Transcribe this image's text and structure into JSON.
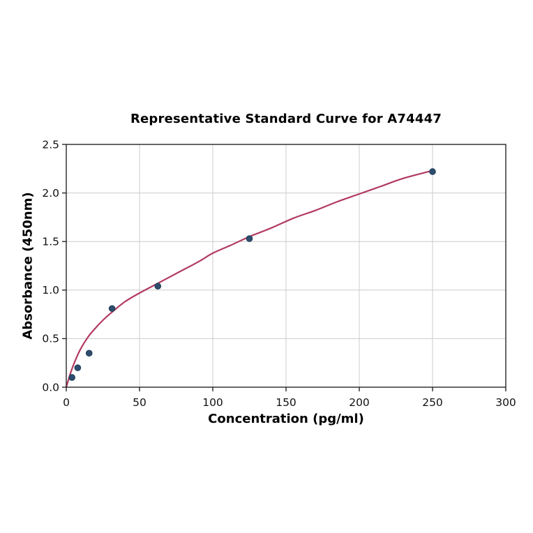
{
  "page": {
    "background": "#ffffff"
  },
  "chart_data": {
    "type": "scatter",
    "title": "Representative Standard Curve for A74447",
    "xlabel": "Concentration (pg/ml)",
    "ylabel": "Absorbance (450nm)",
    "xlim": [
      0,
      300
    ],
    "ylim": [
      0,
      2.5
    ],
    "grid": true,
    "legend": "none",
    "x_ticks": [
      0,
      50,
      100,
      150,
      200,
      250,
      300
    ],
    "x_tick_labels": [
      "0",
      "50",
      "100",
      "150",
      "200",
      "250",
      "300"
    ],
    "y_ticks": [
      0,
      0.5,
      1.0,
      1.5,
      2.0,
      2.5
    ],
    "y_tick_labels": [
      "0.0",
      "0.5",
      "1.0",
      "1.5",
      "2.0",
      "2.5"
    ],
    "series": [
      {
        "name": "standard-points",
        "type": "scatter",
        "points": [
          {
            "x": 3.9,
            "y": 0.1
          },
          {
            "x": 7.8,
            "y": 0.2
          },
          {
            "x": 15.6,
            "y": 0.35
          },
          {
            "x": 31.25,
            "y": 0.81
          },
          {
            "x": 62.5,
            "y": 1.04
          },
          {
            "x": 125,
            "y": 1.53
          },
          {
            "x": 250,
            "y": 2.22
          }
        ]
      },
      {
        "name": "fitted-curve",
        "type": "line",
        "points": [
          [
            0,
            0.0
          ],
          [
            3,
            0.15
          ],
          [
            6,
            0.27
          ],
          [
            10,
            0.4
          ],
          [
            15,
            0.52
          ],
          [
            20,
            0.61
          ],
          [
            25,
            0.69
          ],
          [
            31,
            0.77
          ],
          [
            40,
            0.88
          ],
          [
            50,
            0.97
          ],
          [
            62.5,
            1.07
          ],
          [
            75,
            1.17
          ],
          [
            90,
            1.29
          ],
          [
            100,
            1.38
          ],
          [
            112,
            1.46
          ],
          [
            125,
            1.55
          ],
          [
            140,
            1.64
          ],
          [
            155,
            1.74
          ],
          [
            170,
            1.82
          ],
          [
            185,
            1.91
          ],
          [
            200,
            1.99
          ],
          [
            215,
            2.07
          ],
          [
            230,
            2.15
          ],
          [
            250,
            2.23
          ]
        ]
      }
    ],
    "colors": {
      "curve": "#b23a60",
      "marker": "#2e4d6e",
      "marker_edge": "#203d58",
      "grid": "#cccccc",
      "axis": "#262626",
      "tick_text": "#111111"
    }
  }
}
